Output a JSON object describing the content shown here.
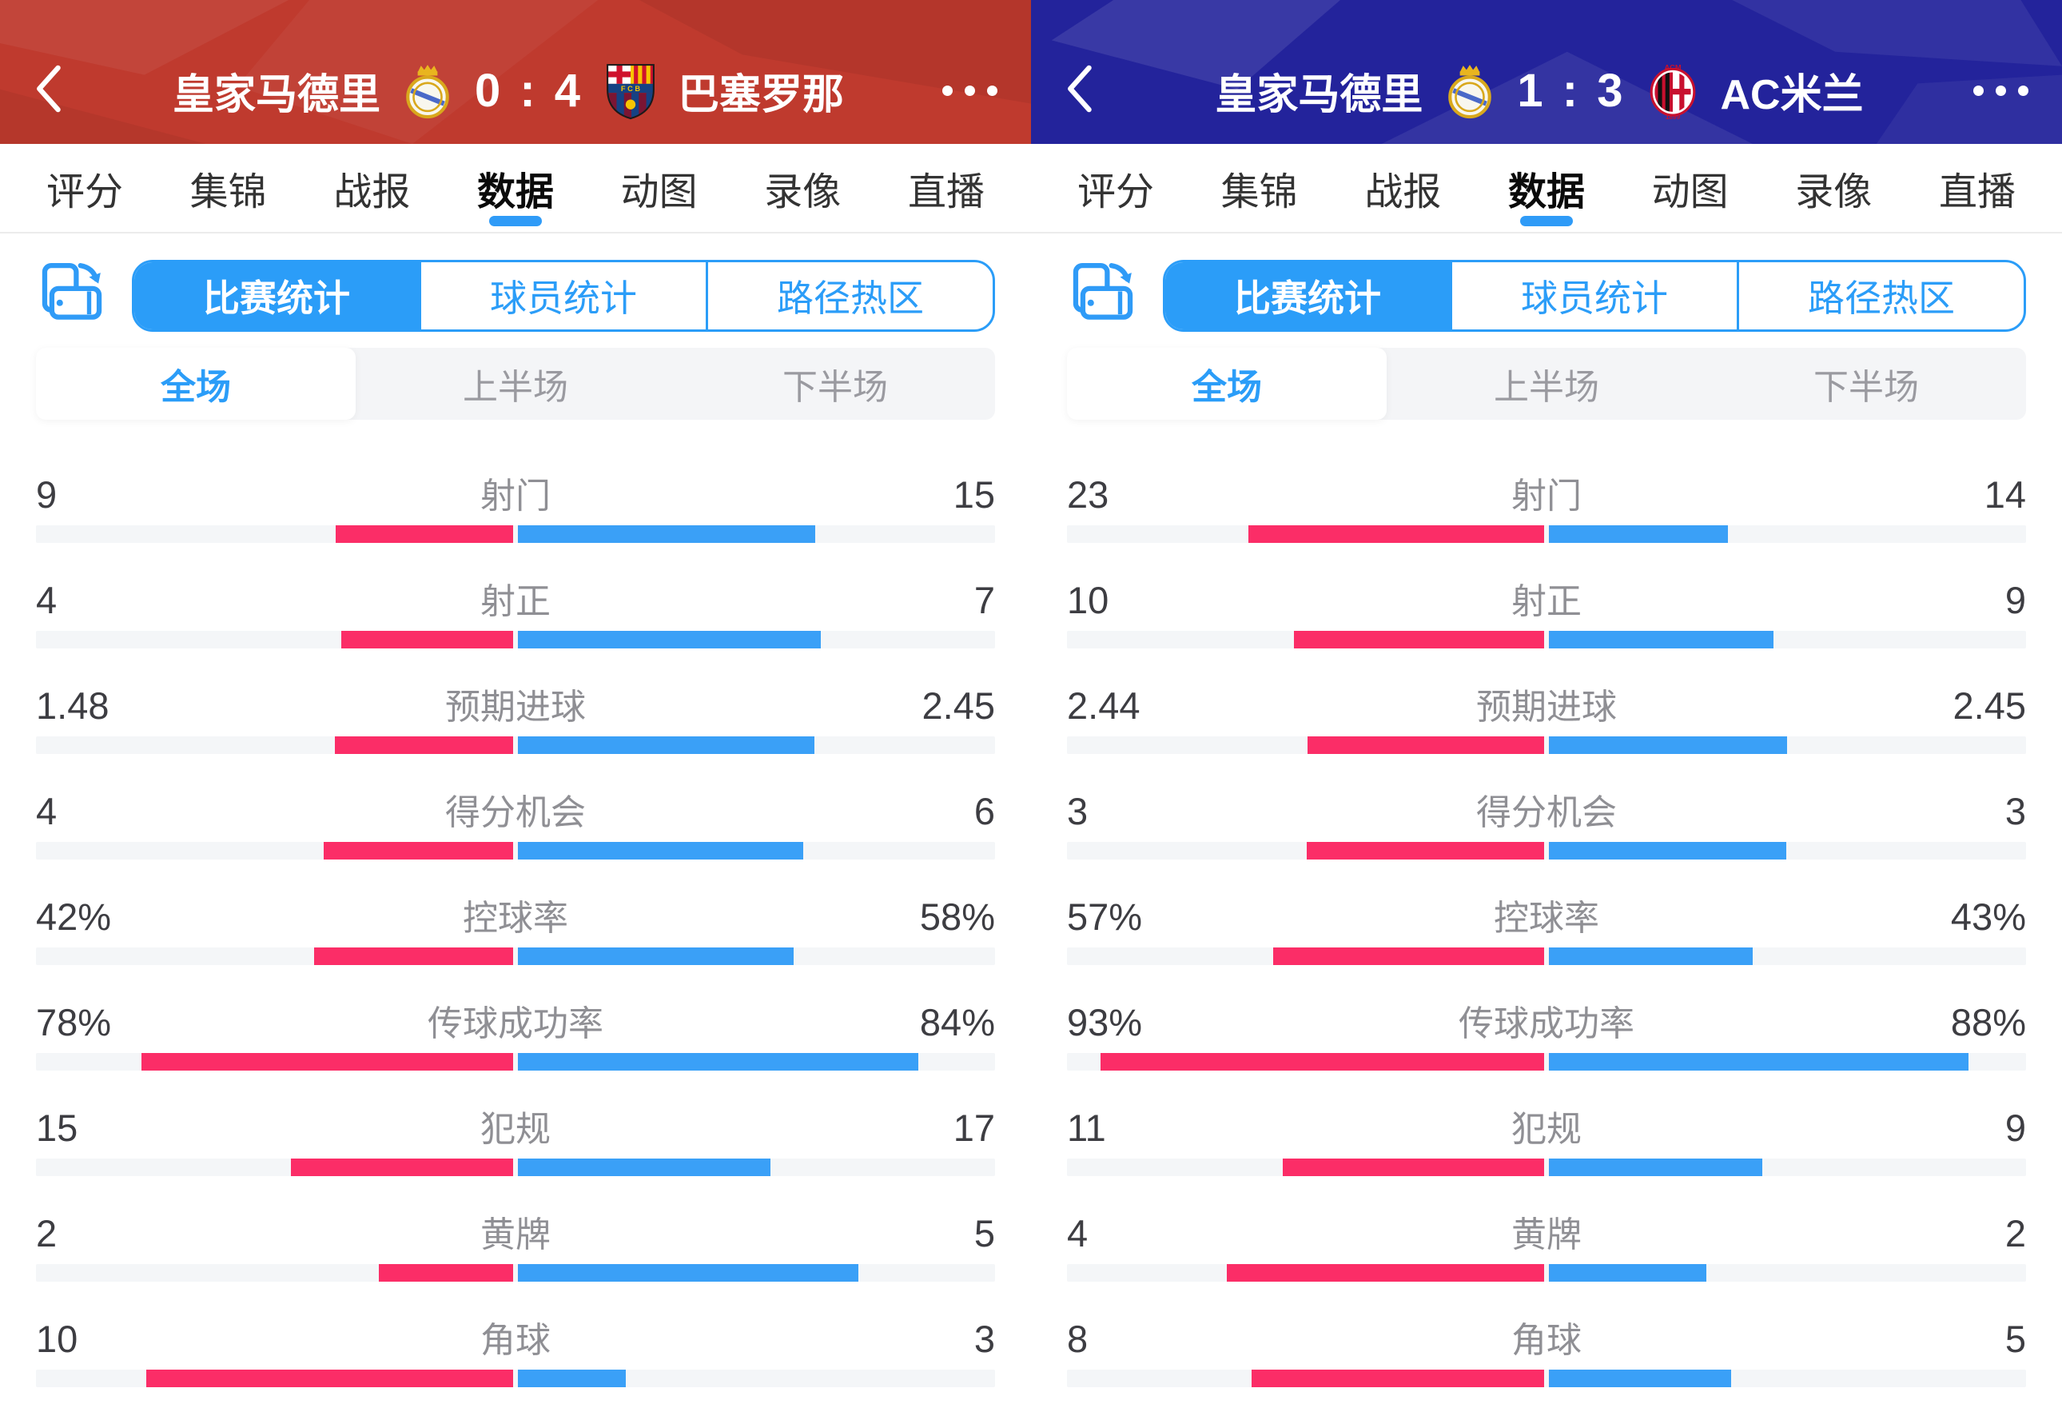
{
  "colors": {
    "home_bar": "#fb2d67",
    "away_bar": "#3aa0f7",
    "accent_blue": "#2b9df8",
    "left_header_bg": "#bf3a2e",
    "right_header_bg": "#23239b"
  },
  "panels": [
    {
      "header": {
        "home_team": "皇家马德里",
        "home_score": "0",
        "score_sep": ":",
        "away_score": "4",
        "away_team": "巴塞罗那",
        "home_logo": "real-madrid-crest",
        "away_logo": "barcelona-crest"
      },
      "tabs": [
        "评分",
        "集锦",
        "战报",
        "数据",
        "动图",
        "录像",
        "直播"
      ],
      "active_tab": 3,
      "seg_tabs": [
        "比赛统计",
        "球员统计",
        "路径热区"
      ],
      "active_seg": 0,
      "period_tabs": [
        "全场",
        "上半场",
        "下半场"
      ],
      "active_period": 0,
      "stats": [
        {
          "label": "射门",
          "home": "9",
          "away": "15"
        },
        {
          "label": "射正",
          "home": "4",
          "away": "7"
        },
        {
          "label": "预期进球",
          "home": "1.48",
          "away": "2.45"
        },
        {
          "label": "得分机会",
          "home": "4",
          "away": "6"
        },
        {
          "label": "控球率",
          "home": "42%",
          "away": "58%"
        },
        {
          "label": "传球成功率",
          "home": "78%",
          "away": "84%"
        },
        {
          "label": "犯规",
          "home": "15",
          "away": "17"
        },
        {
          "label": "黄牌",
          "home": "2",
          "away": "5"
        },
        {
          "label": "角球",
          "home": "10",
          "away": "3"
        }
      ]
    },
    {
      "header": {
        "home_team": "皇家马德里",
        "home_score": "1",
        "score_sep": ":",
        "away_score": "3",
        "away_team": "AC米兰",
        "home_logo": "real-madrid-crest",
        "away_logo": "ac-milan-crest"
      },
      "tabs": [
        "评分",
        "集锦",
        "战报",
        "数据",
        "动图",
        "录像",
        "直播"
      ],
      "active_tab": 3,
      "seg_tabs": [
        "比赛统计",
        "球员统计",
        "路径热区"
      ],
      "active_seg": 0,
      "period_tabs": [
        "全场",
        "上半场",
        "下半场"
      ],
      "active_period": 0,
      "stats": [
        {
          "label": "射门",
          "home": "23",
          "away": "14"
        },
        {
          "label": "射正",
          "home": "10",
          "away": "9"
        },
        {
          "label": "预期进球",
          "home": "2.44",
          "away": "2.45"
        },
        {
          "label": "得分机会",
          "home": "3",
          "away": "3"
        },
        {
          "label": "控球率",
          "home": "57%",
          "away": "43%"
        },
        {
          "label": "传球成功率",
          "home": "93%",
          "away": "88%"
        },
        {
          "label": "犯规",
          "home": "11",
          "away": "9"
        },
        {
          "label": "黄牌",
          "home": "4",
          "away": "2"
        },
        {
          "label": "角球",
          "home": "8",
          "away": "5"
        }
      ]
    }
  ]
}
